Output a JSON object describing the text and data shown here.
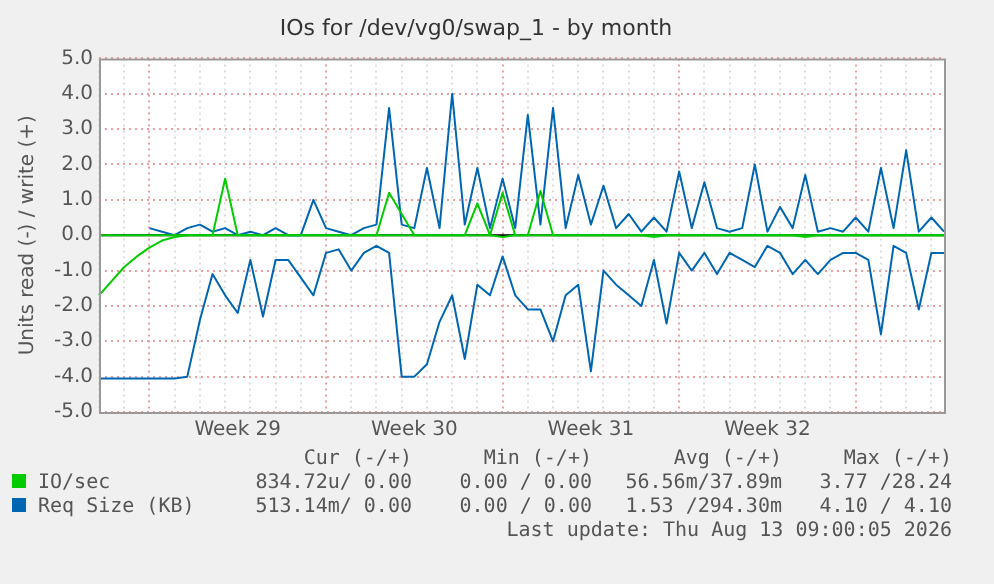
{
  "chart_data": {
    "type": "line",
    "title": "IOs for /dev/vg0/swap_1 - by month",
    "ylabel": "Units read (-) / write (+)",
    "categories": [
      null,
      null,
      null,
      null,
      null,
      null,
      null,
      null,
      null,
      null,
      null,
      "Week 29",
      null,
      null,
      null,
      null,
      null,
      null,
      null,
      null,
      null,
      null,
      null,
      null,
      null,
      "Week 30",
      null,
      null,
      null,
      null,
      null,
      null,
      null,
      null,
      null,
      null,
      null,
      null,
      null,
      "Week 31",
      null,
      null,
      null,
      null,
      null,
      null,
      null,
      null,
      null,
      null,
      null,
      null,
      null,
      "Week 32",
      null,
      null,
      null,
      null,
      null,
      null,
      null,
      null,
      null,
      null,
      null,
      null,
      null,
      null
    ],
    "ylim": [
      -5,
      5
    ],
    "yticks": [
      {
        "value": -5,
        "label": "-5.0"
      },
      {
        "value": -4,
        "label": "-4.0"
      },
      {
        "value": -3,
        "label": "-3.0"
      },
      {
        "value": -2,
        "label": "-2.0"
      },
      {
        "value": -1,
        "label": "-1.0"
      },
      {
        "value": 0,
        "label": "0.0"
      },
      {
        "value": 1,
        "label": "1.0"
      },
      {
        "value": 2,
        "label": "2.0"
      },
      {
        "value": 3,
        "label": "3.0"
      },
      {
        "value": 4,
        "label": "4.0"
      },
      {
        "value": 5,
        "label": "5.0"
      }
    ],
    "grid": true,
    "legend": "bottom",
    "line_style": "solid",
    "marker": "none",
    "ref_lines": [
      {
        "axis": "y",
        "value": 0,
        "color": "#000000"
      }
    ],
    "series": [
      {
        "color": "#00cc00",
        "values": [
          -1.7,
          -1.3,
          -0.9,
          -0.6,
          -0.35,
          -0.15,
          -0.05,
          0,
          0,
          0,
          0,
          0,
          0,
          0,
          0,
          0,
          0,
          0,
          0,
          0,
          0,
          0,
          0,
          0,
          0,
          0,
          0,
          0,
          0,
          0,
          0,
          0,
          -0.05,
          0,
          0,
          0,
          0,
          0,
          0,
          0,
          0,
          0,
          0,
          0,
          -0.05,
          0,
          0,
          0,
          0,
          0,
          0,
          0,
          0,
          0,
          0,
          0,
          -0.05,
          0,
          0,
          0,
          0,
          0,
          0,
          0,
          0,
          0,
          0,
          0
        ]
      },
      {
        "name": "IO/sec",
        "color": "#00cc00",
        "values": [
          0,
          0,
          0,
          0,
          0,
          0,
          0,
          0,
          0,
          0,
          1.6,
          0,
          0,
          0,
          0,
          0,
          0,
          0,
          0,
          0,
          0,
          0,
          0,
          1.2,
          0.6,
          0,
          0,
          0,
          0,
          0,
          0.9,
          0,
          1.2,
          0,
          0,
          1.25,
          0,
          0,
          0,
          0,
          0,
          0,
          0,
          0,
          0,
          0,
          0,
          0,
          0,
          0,
          0,
          0,
          0,
          0,
          0,
          0,
          0,
          0,
          0,
          0,
          0,
          0,
          0,
          0,
          0,
          0,
          0,
          0
        ]
      },
      {
        "color": "#0066b3",
        "values": [
          -4.05,
          -4.05,
          -4.05,
          -4.05,
          -4.05,
          -4.05,
          -4.05,
          -4.0,
          -2.4,
          -1.1,
          -1.7,
          -2.2,
          -0.7,
          -2.3,
          -0.7,
          -0.7,
          -1.2,
          -1.7,
          -0.5,
          -0.4,
          -1.0,
          -0.5,
          -0.3,
          -0.5,
          -4.0,
          -4.0,
          -3.65,
          -2.45,
          -1.7,
          -3.5,
          -1.4,
          -1.7,
          -0.6,
          -1.7,
          -2.1,
          -2.1,
          -3.0,
          -1.7,
          -1.4,
          -3.85,
          -1.0,
          -1.4,
          -1.7,
          -2.0,
          -0.7,
          -2.5,
          -0.5,
          -1.0,
          -0.5,
          -1.1,
          -0.5,
          -0.7,
          -0.9,
          -0.3,
          -0.5,
          -1.1,
          -0.7,
          -1.1,
          -0.7,
          -0.5,
          -0.5,
          -0.7,
          -2.8,
          -0.3,
          -0.5,
          -2.1,
          -0.5,
          -0.5
        ]
      },
      {
        "name": "Req Size (KB)",
        "color": "#0066b3",
        "values": [
          null,
          null,
          null,
          null,
          0.2,
          0.1,
          0,
          0.2,
          0.3,
          0.1,
          0.2,
          0,
          0.1,
          0,
          0.2,
          0,
          0,
          1.0,
          0.2,
          0.1,
          0,
          0.2,
          0.3,
          3.6,
          0.3,
          0.2,
          1.9,
          0.2,
          4.0,
          0.3,
          1.9,
          0.2,
          1.6,
          0.2,
          3.4,
          0.3,
          3.6,
          0.2,
          1.7,
          0.3,
          1.4,
          0.2,
          0.6,
          0.1,
          0.5,
          0.1,
          1.8,
          0.2,
          1.5,
          0.2,
          0.1,
          0.2,
          2.0,
          0.1,
          0.8,
          0.2,
          1.7,
          0.1,
          0.2,
          0.1,
          0.5,
          0.1,
          1.9,
          0.2,
          2.4,
          0.1,
          0.5,
          0.1
        ]
      }
    ],
    "annotations": [
      "Cur (-/+)",
      "Min (-/+)",
      "Avg (-/+)",
      "Max (-/+)",
      "834.72u/ 0.00",
      "0.00 / 0.00",
      "56.56m/37.89m",
      "3.77 /28.24",
      "513.14m/ 0.00",
      "0.00 / 0.00",
      "1.53 /294.30m",
      "4.10 / 4.10",
      "Last update: Thu Aug 13 09:00:05 2026"
    ]
  }
}
